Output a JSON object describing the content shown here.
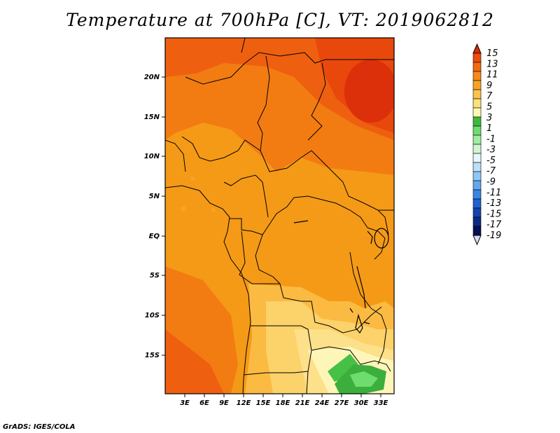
{
  "title": "Temperature at 700hPa [C], VT: 2019062812",
  "credit": "GrADS: IGES/COLA",
  "lat_labels": [
    "20N",
    "15N",
    "10N",
    "5N",
    "EQ",
    "5S",
    "10S",
    "15S"
  ],
  "lon_labels": [
    "3E",
    "6E",
    "9E",
    "12E",
    "15E",
    "18E",
    "21E",
    "24E",
    "27E",
    "30E",
    "33E"
  ],
  "colorbar": {
    "labels": [
      "15",
      "13",
      "11",
      "9",
      "7",
      "5",
      "3",
      "1",
      "-1",
      "-3",
      "-5",
      "-7",
      "-9",
      "-11",
      "-13",
      "-15",
      "-17",
      "-19"
    ],
    "colors": [
      "#dc2a0a",
      "#f04a0c",
      "#f46a12",
      "#f88a18",
      "#fba226",
      "#fbc24e",
      "#fce07e",
      "#fdfab0",
      "#3cba3c",
      "#6edc6e",
      "#a0ecA0",
      "#d0f6d0",
      "#e6f6fc",
      "#bce0fa",
      "#8ec6f6",
      "#62a8ee",
      "#3a86e2",
      "#1f62d0",
      "#1444ae",
      "#0a2a84",
      "#050f54",
      "#dcdcf4"
    ]
  },
  "legend_min": -19,
  "legend_max": 15
}
